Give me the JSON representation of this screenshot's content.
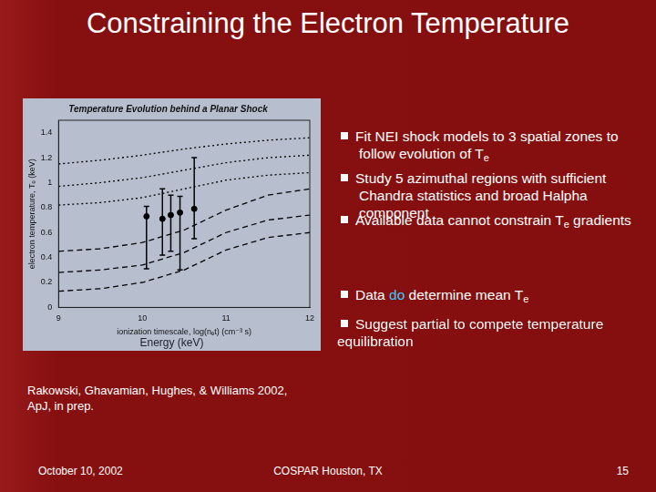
{
  "slide": {
    "title": "Constraining the Electron Temperature",
    "bullets": [
      [
        {
          "text": "Fit NEI shock models to 3 spatial zones to follow evolution of T"
        },
        {
          "text": "e",
          "style": "sub"
        }
      ],
      [
        {
          "text": "Study 5 azimuthal regions with sufficient Chandra statistics and broad Halpha component"
        }
      ],
      [
        {
          "text": "Available data cannot constrain T"
        },
        {
          "text": "e",
          "style": "sub"
        },
        {
          "text": " gradients"
        }
      ],
      [
        {
          "text": "Data "
        },
        {
          "text": "do",
          "style": "highlight"
        },
        {
          "text": " determine mean T"
        },
        {
          "text": "e",
          "style": "sub"
        }
      ],
      [
        {
          "text": "Suggest partial to compete temperature equilibration"
        }
      ]
    ],
    "reference": [
      "Rakowski, Ghavamian, Hughes, & Williams 2002,",
      "ApJ, in prep."
    ],
    "footer": {
      "date": "October 10, 2002",
      "venue": "COSPAR Houston, TX",
      "page": "15"
    }
  },
  "chart_data": {
    "type": "line",
    "title": "Temperature Evolution behind a Planar Shock",
    "x_label": "ionization timescale, log(nₑt) (cm⁻³ s)",
    "y_label": "electron temperature, Tₑ (keV)",
    "annotations": [
      "Energy (keV)"
    ],
    "xlim": [
      9,
      12
    ],
    "xticks": [
      9,
      10,
      11,
      12
    ],
    "ylim": [
      0,
      1.5
    ],
    "yticks": [
      0,
      0.2,
      0.4,
      0.6,
      0.8,
      1,
      1.2,
      1.4
    ],
    "grid": false,
    "x": [
      9,
      9.5,
      10,
      10.5,
      11,
      11.5,
      12
    ],
    "series": [
      {
        "color": "#000000",
        "line_style": "dotted",
        "values": [
          1.15,
          1.18,
          1.22,
          1.27,
          1.31,
          1.34,
          1.36
        ]
      },
      {
        "color": "#000000",
        "line_style": "dotted",
        "values": [
          0.97,
          1.0,
          1.04,
          1.1,
          1.16,
          1.2,
          1.22
        ]
      },
      {
        "color": "#000000",
        "line_style": "dotted",
        "values": [
          0.82,
          0.84,
          0.88,
          0.95,
          1.02,
          1.06,
          1.08
        ]
      },
      {
        "color": "#000000",
        "line_style": "dashed",
        "values": [
          0.45,
          0.47,
          0.52,
          0.62,
          0.78,
          0.9,
          0.95
        ]
      },
      {
        "color": "#000000",
        "line_style": "dashed",
        "values": [
          0.28,
          0.3,
          0.34,
          0.44,
          0.6,
          0.7,
          0.74
        ]
      },
      {
        "color": "#000000",
        "line_style": "dashed",
        "values": [
          0.13,
          0.15,
          0.2,
          0.3,
          0.46,
          0.56,
          0.6
        ]
      },
      {
        "type": "scatter",
        "color": "#000000",
        "marker": "circle",
        "x": [
          10.05,
          10.24,
          10.34,
          10.45,
          10.62
        ],
        "values": [
          0.73,
          0.71,
          0.74,
          0.76,
          0.79
        ],
        "error_low": [
          0.31,
          0.42,
          0.45,
          0.3,
          0.55
        ],
        "error_high": [
          0.81,
          0.95,
          0.9,
          0.89,
          1.2
        ]
      }
    ]
  }
}
